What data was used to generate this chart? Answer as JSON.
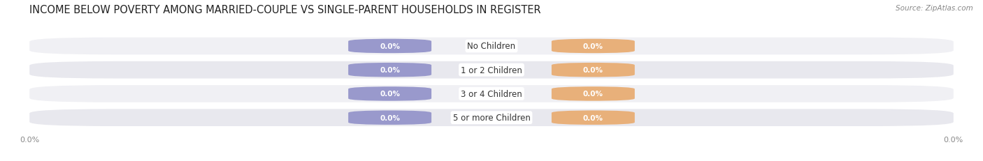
{
  "title": "INCOME BELOW POVERTY AMONG MARRIED-COUPLE VS SINGLE-PARENT HOUSEHOLDS IN REGISTER",
  "source": "Source: ZipAtlas.com",
  "categories": [
    "No Children",
    "1 or 2 Children",
    "3 or 4 Children",
    "5 or more Children"
  ],
  "married_values": [
    0.0,
    0.0,
    0.0,
    0.0
  ],
  "single_values": [
    0.0,
    0.0,
    0.0,
    0.0
  ],
  "married_color": "#9999cc",
  "single_color": "#e8b07a",
  "row_bg_even": "#f0f0f4",
  "row_bg_odd": "#e8e8ee",
  "title_fontsize": 10.5,
  "tick_fontsize": 8,
  "x_tick_label": "0.0%",
  "fig_width": 14.06,
  "fig_height": 2.32,
  "dpi": 100
}
